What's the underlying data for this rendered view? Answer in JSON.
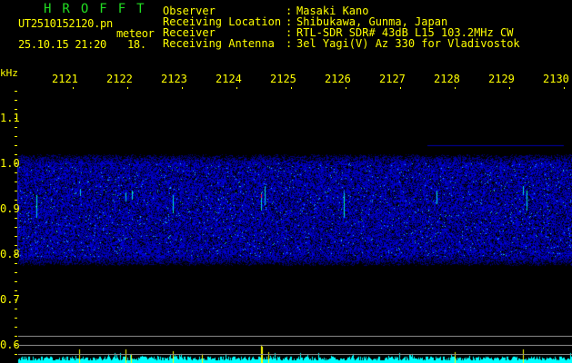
{
  "app": {
    "title": "HROFFT"
  },
  "file": {
    "name": "UT2510152120.pn",
    "mode": "meteor",
    "datetime": "25.10.15 21:20",
    "count": "18."
  },
  "info": [
    {
      "label": "Observer",
      "value": "Masaki Kano"
    },
    {
      "label": "Receiving Location",
      "value": "Shibukawa, Gunma, Japan"
    },
    {
      "label": "Receiver",
      "value": "RTL-SDR SDR# 43dB L15 103.2MHz CW"
    },
    {
      "label": "Receiving Antenna",
      "value": "3el Yagi(V) Az 330 for Vladivostok"
    }
  ],
  "axis": {
    "y_unit": "kHz",
    "y_ticks": [
      "1.1",
      "1.0",
      "0.9",
      "0.8",
      "0.7",
      "0.6"
    ],
    "x_ticks": [
      "2121",
      "2122",
      "2123",
      "2124",
      "2125",
      "2126",
      "2127",
      "2128",
      "2129",
      "2130"
    ]
  },
  "colors": {
    "text": "#ffff00",
    "title": "#22dd22",
    "signal_low": "#0000ff",
    "signal_high": "#ff0000",
    "level_bar": "#00ffff"
  }
}
